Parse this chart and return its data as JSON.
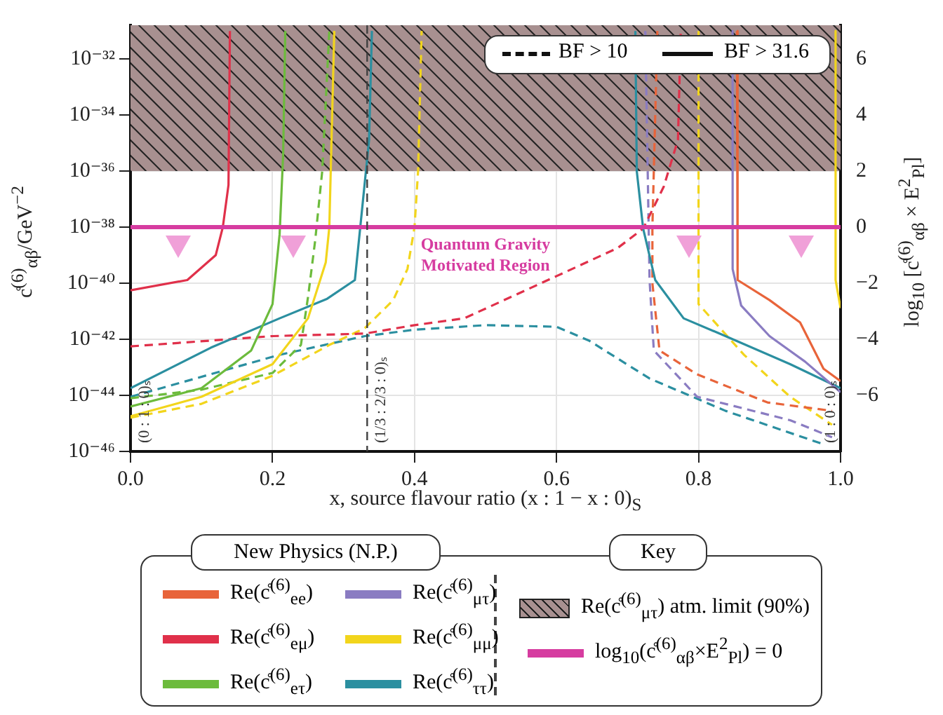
{
  "chart_data": {
    "type": "line",
    "xlabel": "x, source flavour ratio (x : 1 − x : 0)$_{S}$",
    "ylabel": "c̊$^{(6)}$$_{αβ}$/GeV$^{−2}$",
    "y2label": "log$_{10}$ [c̊$^{(6)}$$_{αβ}$ × E$^{2}$$_{Pl}$]",
    "legend_title": "New Physics (N.P.)",
    "legend": "bottom",
    "log": "y",
    "grid": true,
    "marker": "none",
    "xlim": [
      0,
      1
    ],
    "xticks": [
      {
        "value": 0,
        "label": "0.0"
      },
      {
        "value": 0.2,
        "label": "0.2"
      },
      {
        "value": 0.4,
        "label": "0.4"
      },
      {
        "value": 0.6,
        "label": "0.6"
      },
      {
        "value": 0.8,
        "label": "0.8"
      },
      {
        "value": 1,
        "label": "1.0"
      }
    ],
    "ylim": [
      1e-46,
      1.6e-31
    ],
    "yticks": [
      {
        "value": 1e-46,
        "label": "10⁻⁴⁶"
      },
      {
        "value": 1e-44,
        "label": "10⁻⁴⁴"
      },
      {
        "value": 1e-42,
        "label": "10⁻⁴²"
      },
      {
        "value": 1e-40,
        "label": "10⁻⁴⁰"
      },
      {
        "value": 1e-38,
        "label": "10⁻³⁸"
      },
      {
        "value": 1e-36,
        "label": "10⁻³⁶"
      },
      {
        "value": 1e-34,
        "label": "10⁻³⁴"
      },
      {
        "value": 1e-32,
        "label": "10⁻³²"
      }
    ],
    "y2lim": [
      -8,
      7.2
    ],
    "y2ticks": [
      {
        "value": -6,
        "label": "−6"
      },
      {
        "value": -4,
        "label": "−4"
      },
      {
        "value": -2,
        "label": "−2"
      },
      0,
      2,
      4,
      6
    ],
    "series": [
      {
        "name": "Re(c̊$^{(6)}$$_{ee}$)",
        "color": "#e8643a",
        "line_style": "solid",
        "x": [
          0.854,
          0.855,
          0.9,
          0.943,
          0.976,
          1.0
        ],
        "values": [
          1e-31,
          1.3e-40,
          2.5e-41,
          4e-42,
          8.9e-44,
          3.2e-44
        ]
      },
      {
        "name": "Re(c̊$^{(6)}$$_{eμ}$)",
        "color": "#e0304a",
        "line_style": "solid",
        "x": [
          0,
          0.08,
          0.12,
          0.13,
          0.138,
          0.14
        ],
        "values": [
          5.6e-41,
          1.3e-40,
          1e-39,
          1e-38,
          3.2e-37,
          1e-31
        ]
      },
      {
        "name": "Re(c̊$^{(6)}$$_{eτ}$)",
        "color": "#6cbb3c",
        "line_style": "solid",
        "x": [
          0,
          0.1,
          0.17,
          0.2,
          0.21,
          0.215,
          0.218
        ],
        "values": [
          4e-45,
          1.8e-44,
          4e-43,
          1.8e-41,
          5.6e-39,
          4e-36,
          1e-31
        ]
      },
      {
        "name": "Re(c̊$^{(6)}$$_{μτ}$)",
        "color": "#8a7cc2",
        "line_style": "solid",
        "x": [
          0.848,
          0.848,
          0.86,
          0.9,
          0.95,
          1.0
        ],
        "values": [
          1e-31,
          3.2e-40,
          1.6e-41,
          1.3e-42,
          1.6e-43,
          1.3e-44
        ]
      },
      {
        "name": "Re(c̊$^{(6)}$$_{μμ}$)",
        "color": "#f2d51c",
        "line_style": "solid",
        "x": [
          0,
          0.1,
          0.2,
          0.25,
          0.275,
          0.28,
          0.287
        ],
        "values": [
          1.8e-45,
          8.9e-45,
          1.3e-43,
          5.6e-42,
          5.6e-40,
          1e-38,
          1e-31
        ]
      },
      {
        "name": "Re(c̊$^{(6)}$$_{ττ}$)",
        "color": "#2b8fa0",
        "line_style": "solid",
        "x": [
          0,
          0.113,
          0.21,
          0.277,
          0.316,
          0.326,
          0.336,
          0.34
        ],
        "values": [
          1.8e-44,
          5e-43,
          5.6e-42,
          2.8e-41,
          1.3e-40,
          4e-38,
          1.3e-35,
          1e-31
        ]
      },
      {
        "color": "#f2d51c",
        "line_style": "solid",
        "x": [
          0.993,
          0.993,
          1.0
        ],
        "values": [
          1e-31,
          1.3e-40,
          1.3e-41
        ]
      },
      {
        "color": "#2b8fa0",
        "line_style": "solid",
        "x": [
          0.711,
          0.713,
          0.722,
          0.739,
          0.779,
          0.838,
          0.929,
          1.0
        ],
        "values": [
          1e-31,
          1e-36,
          8.9e-39,
          1.3e-40,
          5.6e-42,
          1.3e-42,
          1.3e-43,
          1.8e-44
        ]
      },
      {
        "color": "#e8643a",
        "line_style": "dashed",
        "x": [
          0.742,
          0.735,
          0.735,
          0.745,
          0.798,
          0.897,
          0.988
        ],
        "values": [
          1e-31,
          1e-38,
          1e-40,
          4e-43,
          5.6e-44,
          5.6e-45,
          2.8e-45
        ]
      },
      {
        "color": "#e0304a",
        "line_style": "dashed",
        "x": [
          0,
          0.2,
          0.33,
          0.4,
          0.47,
          0.6,
          0.686,
          0.722,
          0.751,
          0.771,
          0.775
        ],
        "values": [
          5.6e-43,
          1.3e-42,
          1.6e-42,
          3.2e-42,
          5.6e-42,
          1.8e-40,
          1.8e-39,
          8.9e-39,
          2.8e-37,
          1.3e-35,
          1e-31
        ]
      },
      {
        "color": "#6cbb3c",
        "line_style": "dashed",
        "x": [
          0,
          0.1,
          0.2,
          0.24,
          0.25,
          0.26,
          0.27,
          0.28
        ],
        "values": [
          7.9e-45,
          1.6e-44,
          6.3e-44,
          6.3e-43,
          3.2e-41,
          3.2e-39,
          1e-36,
          1e-31
        ]
      },
      {
        "color": "#8a7cc2",
        "line_style": "dashed",
        "x": [
          0.725,
          0.731,
          0.737,
          0.798,
          0.929,
          0.988
        ],
        "values": [
          1e-31,
          1.3e-40,
          4e-43,
          8.9e-45,
          1.3e-45,
          3.2e-46
        ]
      },
      {
        "color": "#f2d51c",
        "line_style": "dashed",
        "x": [
          0,
          0.1,
          0.2,
          0.28,
          0.33,
          0.37,
          0.39,
          0.4,
          0.405,
          0.41
        ],
        "values": [
          1.6e-45,
          5e-45,
          5e-44,
          6.3e-43,
          2.5e-42,
          2.5e-41,
          3.2e-40,
          1e-38,
          1e-36,
          1e-31
        ]
      },
      {
        "color": "#f2d51c",
        "line_style": "dashed",
        "x": [
          0.8,
          0.8,
          0.864,
          0.929,
          0.988
        ],
        "values": [
          1e-31,
          1.8e-41,
          2.8e-43,
          8.9e-45,
          8.9e-46
        ]
      },
      {
        "color": "#2b8fa0",
        "line_style": "dashed",
        "x": [
          0,
          0.21,
          0.33,
          0.4,
          0.5,
          0.6,
          0.646,
          0.731,
          0.838,
          0.976
        ],
        "values": [
          8.9e-45,
          2.8e-43,
          1.3e-42,
          2.2e-42,
          3.2e-42,
          2.8e-42,
          8.9e-43,
          4e-44,
          2.8e-45,
          1.8e-46
        ]
      }
    ],
    "ref_lines": [
      {
        "axis": "y",
        "value": 1e-38,
        "label": "log$_{10}$(c̊$^{(6)}$$_{αβ}$×E$^{2}$$_{Pl}$) = 0",
        "color": "#d63ca0"
      },
      {
        "axis": "x",
        "value": 0.3333,
        "label": "(1/3 : 2/3 : 0)ₛ",
        "color": "#404040",
        "line_style": "dashed"
      }
    ],
    "bands": [
      {
        "axis": "y",
        "from": 1e-36,
        "to": 1.6e-31,
        "label": "Re(c̊$^{(6)}$$_{μτ}$) atm. limit (90%)",
        "color": "#a89090"
      }
    ],
    "annotations": [
      "BF > 10",
      "BF > 31.6",
      "Quantum Gravity\nMotivated Region",
      "Key",
      "(0 : 1 : 0)ₛ",
      "(1 : 0 : 0)ₛ"
    ]
  }
}
